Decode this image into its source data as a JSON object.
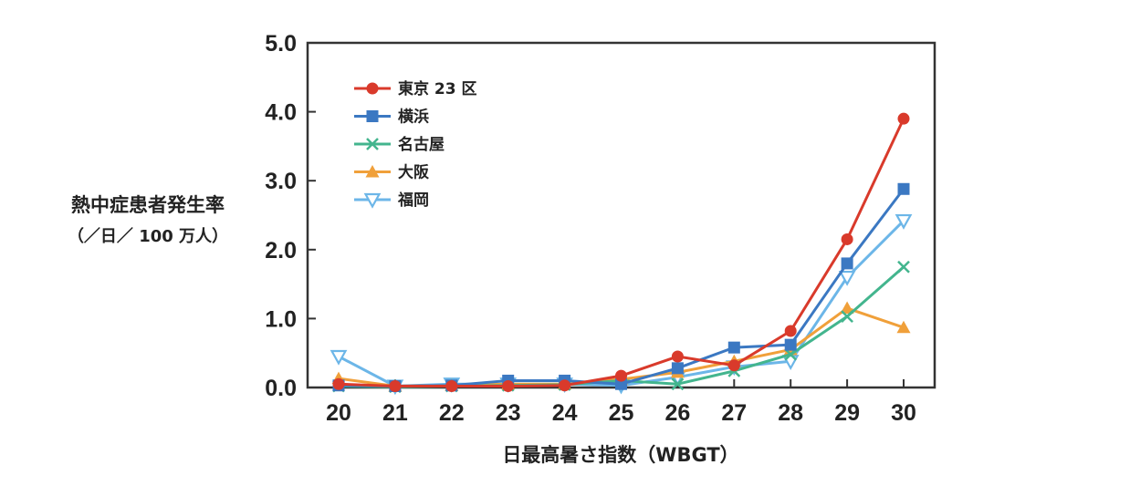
{
  "chart_data": {
    "type": "line",
    "x": [
      20,
      21,
      22,
      23,
      24,
      25,
      26,
      27,
      28,
      29,
      30
    ],
    "xlabel": "日最高暑さ指数（WBGT）",
    "ylabel": "熱中症患者発生率",
    "ylabel_sub": "（／日／ 100 万人）",
    "ylim": [
      0,
      5
    ],
    "yticks": [
      "0.0",
      "1.0",
      "2.0",
      "3.0",
      "4.0",
      "5.0"
    ],
    "grid": false,
    "legend_position": "top-left",
    "series": [
      {
        "name": "東京 23 区",
        "color": "#d93a2b",
        "marker": "circle",
        "values": [
          0.05,
          0.02,
          0.02,
          0.02,
          0.03,
          0.17,
          0.45,
          0.32,
          0.82,
          2.15,
          3.9
        ]
      },
      {
        "name": "横浜",
        "color": "#3b78c2",
        "marker": "square",
        "values": [
          0.03,
          0.02,
          0.03,
          0.1,
          0.1,
          0.05,
          0.28,
          0.58,
          0.62,
          1.8,
          2.88
        ]
      },
      {
        "name": "名古屋",
        "color": "#43b58e",
        "marker": "x",
        "values": [
          0.02,
          0.01,
          0.02,
          0.03,
          0.04,
          0.1,
          0.05,
          0.24,
          0.48,
          1.03,
          1.75
        ]
      },
      {
        "name": "大阪",
        "color": "#f0a03a",
        "marker": "triangle-up",
        "values": [
          0.13,
          0.02,
          0.03,
          0.05,
          0.05,
          0.12,
          0.22,
          0.38,
          0.55,
          1.15,
          0.87
        ]
      },
      {
        "name": "福岡",
        "color": "#6cb6e8",
        "marker": "triangle-down",
        "values": [
          0.45,
          0.02,
          0.05,
          0.05,
          0.05,
          0.03,
          0.15,
          0.3,
          0.38,
          1.6,
          2.42
        ]
      }
    ]
  }
}
